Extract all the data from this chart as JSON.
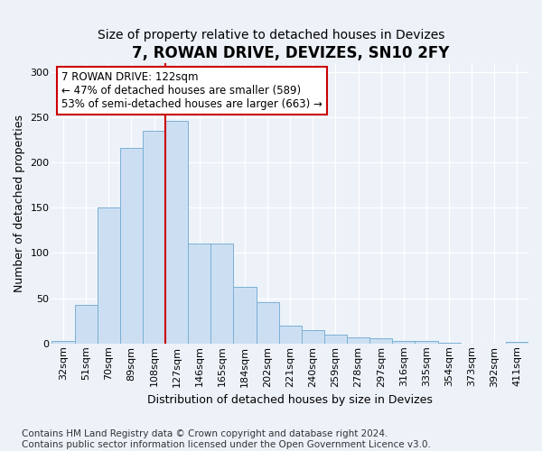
{
  "title": "7, ROWAN DRIVE, DEVIZES, SN10 2FY",
  "subtitle": "Size of property relative to detached houses in Devizes",
  "xlabel": "Distribution of detached houses by size in Devizes",
  "ylabel": "Number of detached properties",
  "categories": [
    "32sqm",
    "51sqm",
    "70sqm",
    "89sqm",
    "108sqm",
    "127sqm",
    "146sqm",
    "165sqm",
    "184sqm",
    "202sqm",
    "221sqm",
    "240sqm",
    "259sqm",
    "278sqm",
    "297sqm",
    "316sqm",
    "335sqm",
    "354sqm",
    "373sqm",
    "392sqm",
    "411sqm"
  ],
  "values": [
    3,
    43,
    150,
    216,
    235,
    246,
    110,
    110,
    63,
    46,
    20,
    15,
    10,
    7,
    6,
    3,
    3,
    1,
    0,
    0,
    2
  ],
  "bar_color": "#ccdff2",
  "bar_edgecolor": "#7ab0d4",
  "vline_x": 4.5,
  "vline_color": "#cc0000",
  "annotation_text": "7 ROWAN DRIVE: 122sqm\n← 47% of detached houses are smaller (589)\n53% of semi-detached houses are larger (663) →",
  "annotation_box_facecolor": "#ffffff",
  "annotation_box_edgecolor": "#cc0000",
  "ylim": [
    0,
    310
  ],
  "footnote": "Contains HM Land Registry data © Crown copyright and database right 2024.\nContains public sector information licensed under the Open Government Licence v3.0.",
  "background_color": "#edf2f9",
  "grid_color": "#ffffff",
  "title_fontsize": 12,
  "subtitle_fontsize": 10,
  "label_fontsize": 9,
  "tick_fontsize": 8,
  "annotation_fontsize": 8.5,
  "footnote_fontsize": 7.5
}
